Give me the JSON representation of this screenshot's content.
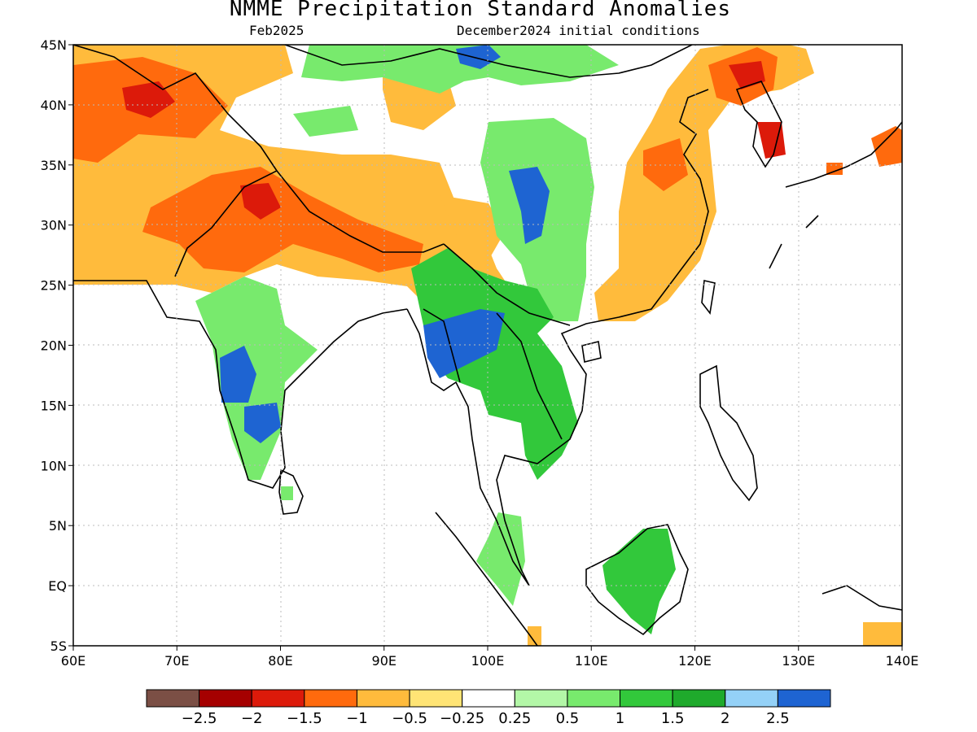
{
  "title": "NMME Precipitation Standard Anomalies",
  "valid_month": "Feb2025",
  "initial_conditions": "December2024 initial conditions",
  "map": {
    "projection": "equirectangular",
    "lon_range": [
      60,
      140
    ],
    "lat_range": [
      -5,
      45
    ],
    "x_ticks": [
      "60E",
      "70E",
      "80E",
      "90E",
      "100E",
      "110E",
      "120E",
      "130E",
      "140E"
    ],
    "y_ticks": [
      "45N",
      "40N",
      "35N",
      "30N",
      "25N",
      "20N",
      "15N",
      "10N",
      "5N",
      "EQ",
      "5S"
    ],
    "gridlines": "dotted"
  },
  "colorbar": {
    "colors": [
      "#7b4f45",
      "#a50000",
      "#dc1a0a",
      "#ff6a0d",
      "#ffbb3c",
      "#ffe475",
      "#ffffff",
      "#b3f7a7",
      "#78ea6d",
      "#32c83b",
      "#1faa2c",
      "#94d1f7",
      "#1e64d2"
    ],
    "labels": [
      "-2.5",
      "-2",
      "-1.5",
      "-1",
      "-0.5",
      "-0.25",
      "0.25",
      "0.5",
      "1",
      "1.5",
      "2",
      "2.5"
    ]
  },
  "regions": [
    {
      "name": "central-asia-dry",
      "color": "#ffbb3c"
    },
    {
      "name": "himalaya-dry",
      "color": "#ff6a0d"
    },
    {
      "name": "northwest-dry-core",
      "color": "#dc1a0a"
    },
    {
      "name": "tibet-north-wet",
      "color": "#78ea6d"
    },
    {
      "name": "east-china-dry",
      "color": "#ffbb3c"
    },
    {
      "name": "northeast-china-dry",
      "color": "#ff6a0d"
    },
    {
      "name": "korea-dry-core",
      "color": "#dc1a0a"
    },
    {
      "name": "sichuan-wet",
      "color": "#78ea6d"
    },
    {
      "name": "sichuan-wet-core",
      "color": "#1e64d2"
    },
    {
      "name": "india-west-wet",
      "color": "#78ea6d"
    },
    {
      "name": "india-west-wet-core",
      "color": "#1e64d2"
    },
    {
      "name": "myanmar-thailand-wet",
      "color": "#32c83b"
    },
    {
      "name": "myanmar-wet-core",
      "color": "#1e64d2"
    },
    {
      "name": "malaysia-wet",
      "color": "#78ea6d"
    },
    {
      "name": "borneo-wet",
      "color": "#32c83b"
    },
    {
      "name": "java-dry",
      "color": "#ffbb3c"
    },
    {
      "name": "japan-dry",
      "color": "#ff6a0d"
    },
    {
      "name": "mongolia-north-wet-core",
      "color": "#1e64d2"
    }
  ]
}
